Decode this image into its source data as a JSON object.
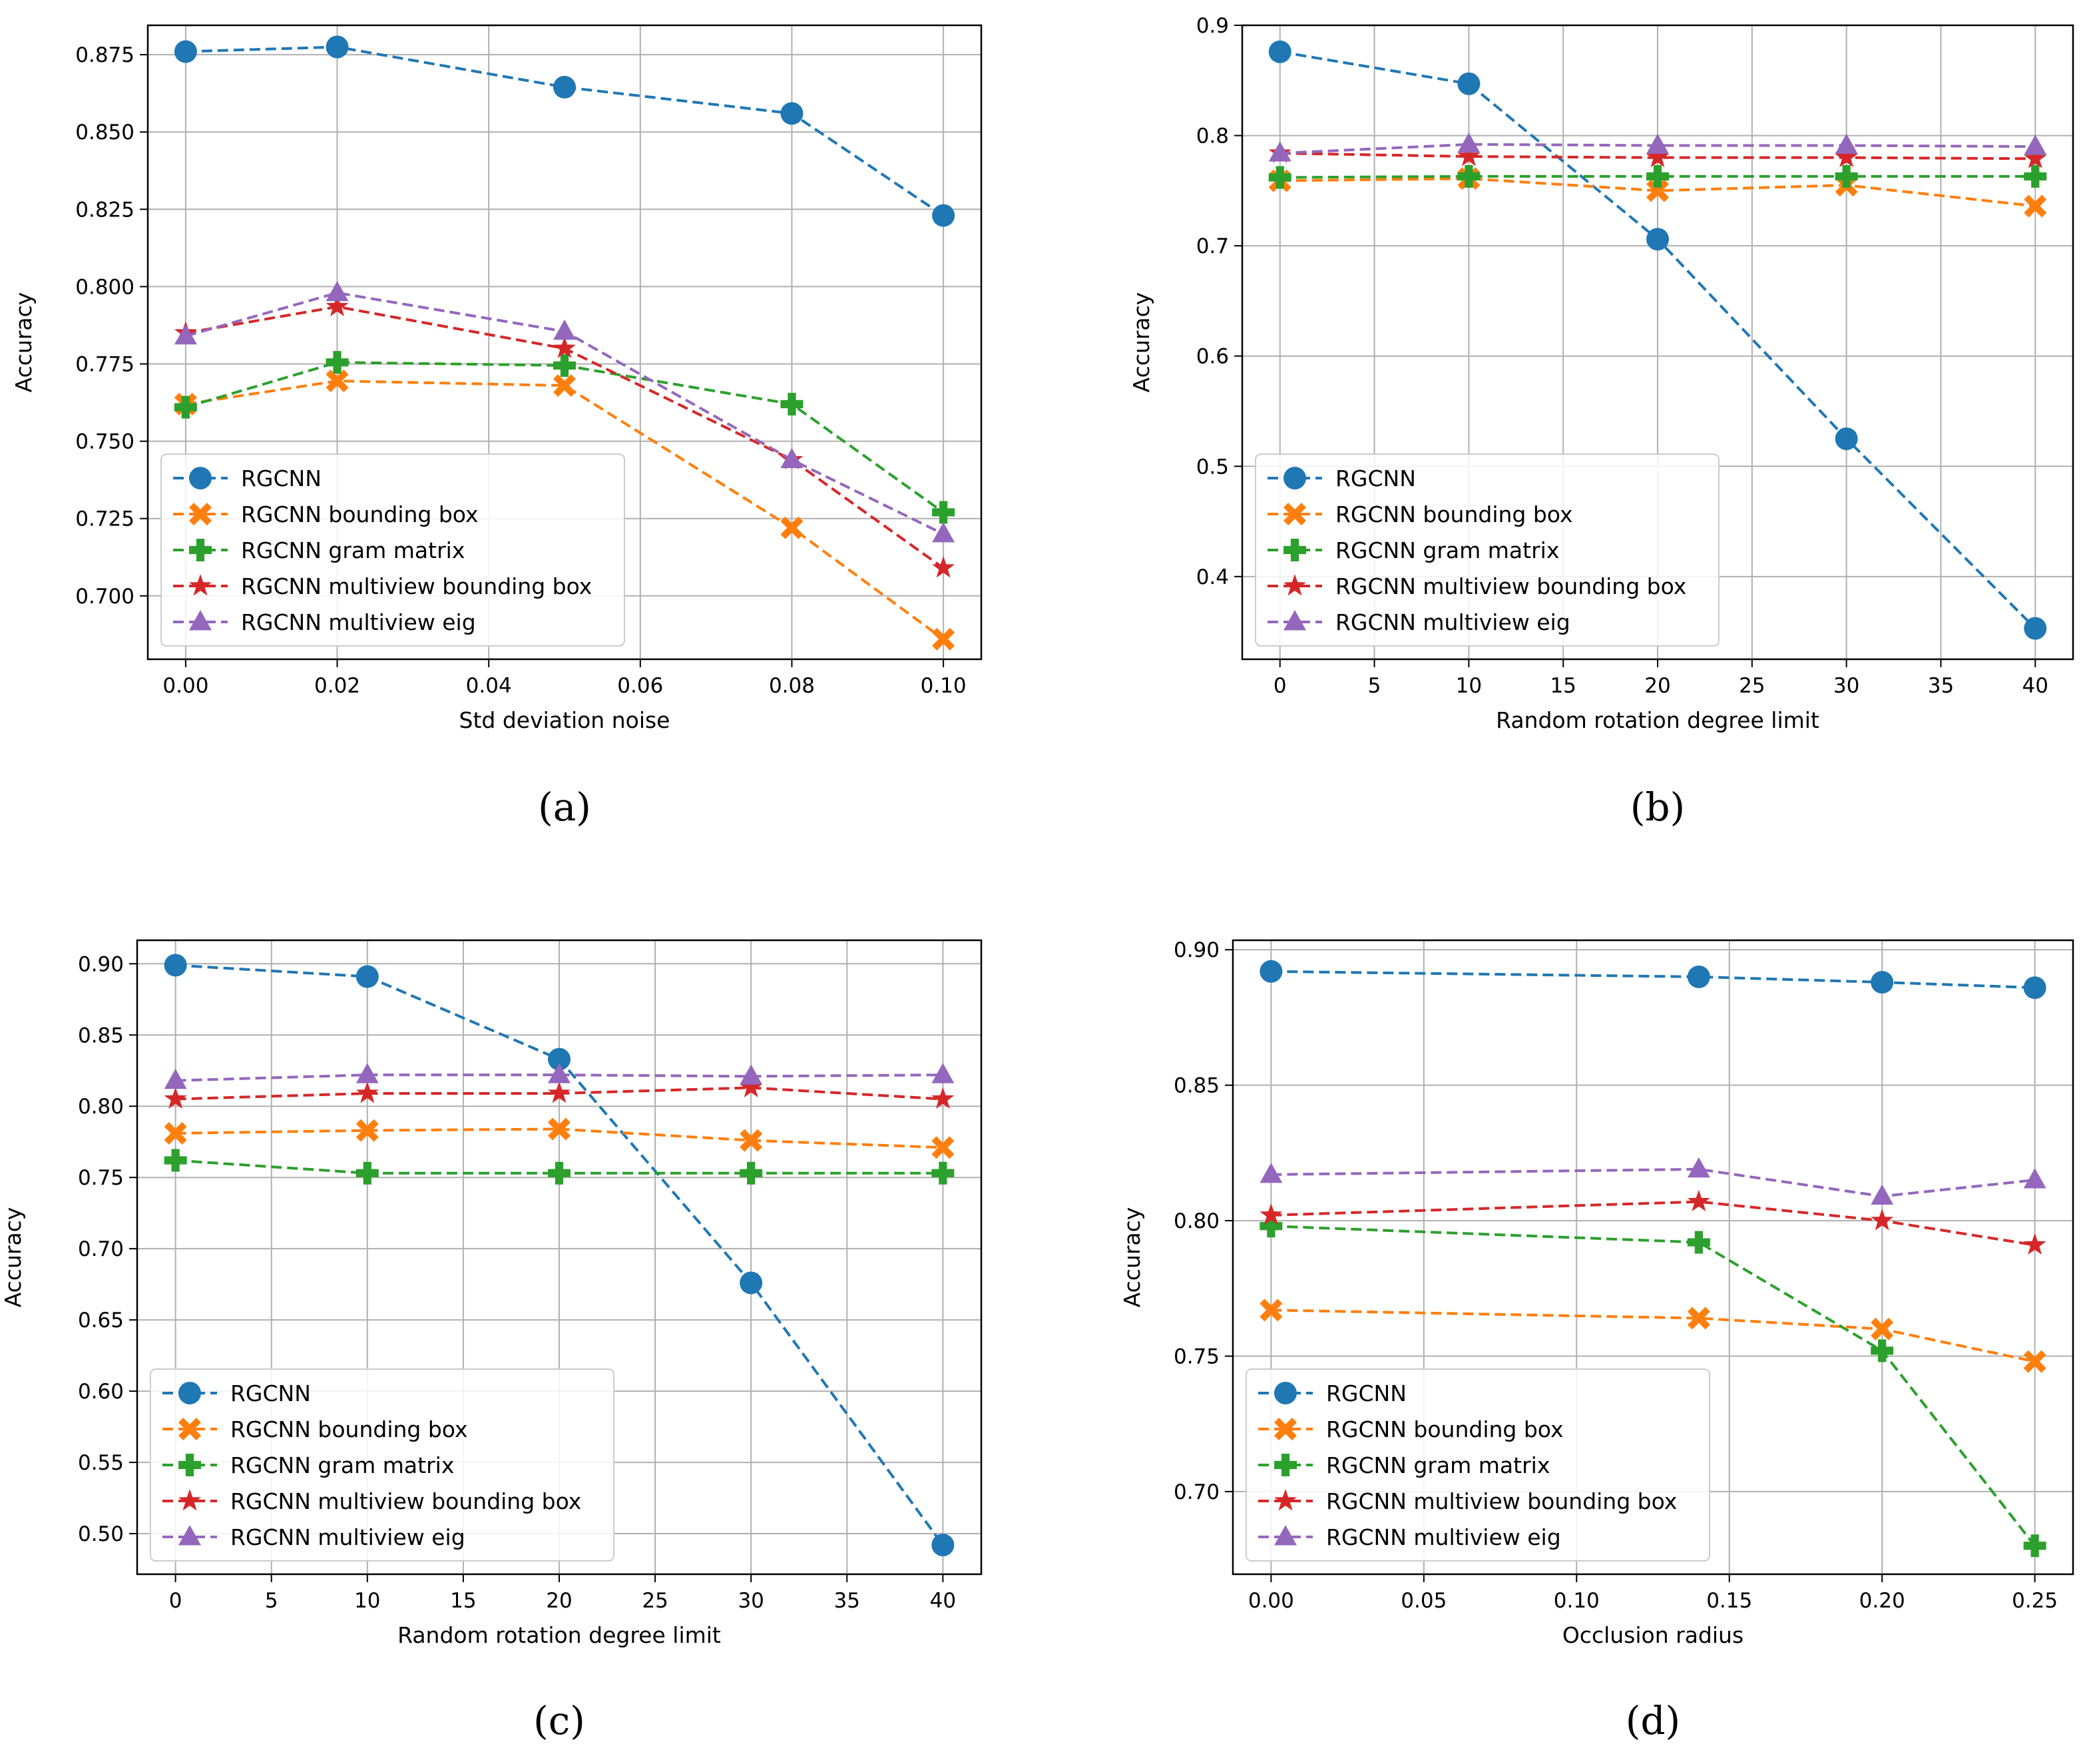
{
  "colors": {
    "RGCNN": "#1f77b4",
    "RGCNN bounding box": "#ff7f0e",
    "RGCNN gram matrix": "#2ca02c",
    "RGCNN multiview bounding box": "#d62728",
    "RGCNN multiview eig": "#9467bd",
    "grid": "#b0b0b0",
    "axis": "#000000"
  },
  "chart_data": [
    {
      "type": "line",
      "panel_label": "(a)",
      "xlabel": "Std deviation noise",
      "ylabel": "Accuracy",
      "xlim": [
        -0.005,
        0.105
      ],
      "ylim": [
        0.6795,
        0.8845
      ],
      "xticks": [
        0.0,
        0.02,
        0.04,
        0.06,
        0.08,
        0.1
      ],
      "xtick_labels": [
        "0.00",
        "0.02",
        "0.04",
        "0.06",
        "0.08",
        "0.10"
      ],
      "yticks": [
        0.7,
        0.725,
        0.75,
        0.775,
        0.8,
        0.825,
        0.85,
        0.875
      ],
      "ytick_labels": [
        "0.700",
        "0.725",
        "0.750",
        "0.775",
        "0.800",
        "0.825",
        "0.850",
        "0.875"
      ],
      "x": [
        0.0,
        0.02,
        0.05,
        0.08,
        0.1
      ],
      "legend_position": "lower-left",
      "series": [
        {
          "name": "RGCNN",
          "marker": "circle",
          "values": [
            0.876,
            0.8775,
            0.8645,
            0.856,
            0.823
          ]
        },
        {
          "name": "RGCNN bounding box",
          "marker": "x-filled",
          "values": [
            0.762,
            0.7695,
            0.768,
            0.722,
            0.686
          ]
        },
        {
          "name": "RGCNN gram matrix",
          "marker": "plus-filled",
          "values": [
            0.761,
            0.7755,
            0.7745,
            0.762,
            0.727
          ]
        },
        {
          "name": "RGCNN multiview bounding box",
          "marker": "star",
          "values": [
            0.785,
            0.7935,
            0.78,
            0.744,
            0.709
          ]
        },
        {
          "name": "RGCNN multiview eig",
          "marker": "triangle",
          "values": [
            0.784,
            0.798,
            0.7855,
            0.744,
            0.72
          ]
        }
      ]
    },
    {
      "type": "line",
      "panel_label": "(b)",
      "xlabel": "Random rotation degree limit",
      "ylabel": "Accuracy",
      "xlim": [
        -2,
        42
      ],
      "ylim": [
        0.325,
        0.9
      ],
      "xticks": [
        0,
        5,
        10,
        15,
        20,
        25,
        30,
        35,
        40
      ],
      "xtick_labels": [
        "0",
        "5",
        "10",
        "15",
        "20",
        "25",
        "30",
        "35",
        "40"
      ],
      "yticks": [
        0.4,
        0.5,
        0.6,
        0.7,
        0.8,
        0.9
      ],
      "ytick_labels": [
        "0.4",
        "0.5",
        "0.6",
        "0.7",
        "0.8",
        "0.9"
      ],
      "x": [
        0,
        10,
        20,
        30,
        40
      ],
      "legend_position": "lower-left",
      "series": [
        {
          "name": "RGCNN",
          "marker": "circle",
          "values": [
            0.876,
            0.847,
            0.706,
            0.525,
            0.353
          ]
        },
        {
          "name": "RGCNN bounding box",
          "marker": "x-filled",
          "values": [
            0.759,
            0.761,
            0.75,
            0.755,
            0.736
          ]
        },
        {
          "name": "RGCNN gram matrix",
          "marker": "plus-filled",
          "values": [
            0.762,
            0.763,
            0.763,
            0.763,
            0.763
          ]
        },
        {
          "name": "RGCNN multiview bounding box",
          "marker": "star",
          "values": [
            0.784,
            0.781,
            0.78,
            0.78,
            0.779
          ]
        },
        {
          "name": "RGCNN multiview eig",
          "marker": "triangle",
          "values": [
            0.784,
            0.792,
            0.791,
            0.791,
            0.79
          ]
        }
      ]
    },
    {
      "type": "line",
      "panel_label": "(c)",
      "xlabel": "Random rotation degree limit",
      "ylabel": "Accuracy",
      "xlim": [
        -2,
        42
      ],
      "ylim": [
        0.4715,
        0.9165
      ],
      "xticks": [
        0,
        5,
        10,
        15,
        20,
        25,
        30,
        35,
        40
      ],
      "xtick_labels": [
        "0",
        "5",
        "10",
        "15",
        "20",
        "25",
        "30",
        "35",
        "40"
      ],
      "yticks": [
        0.5,
        0.55,
        0.6,
        0.65,
        0.7,
        0.75,
        0.8,
        0.85,
        0.9
      ],
      "ytick_labels": [
        "0.50",
        "0.55",
        "0.60",
        "0.65",
        "0.70",
        "0.75",
        "0.80",
        "0.85",
        "0.90"
      ],
      "x": [
        0,
        10,
        20,
        30,
        40
      ],
      "legend_position": "lower-left",
      "series": [
        {
          "name": "RGCNN",
          "marker": "circle",
          "values": [
            0.899,
            0.891,
            0.833,
            0.676,
            0.492
          ]
        },
        {
          "name": "RGCNN bounding box",
          "marker": "x-filled",
          "values": [
            0.781,
            0.783,
            0.784,
            0.776,
            0.771
          ]
        },
        {
          "name": "RGCNN gram matrix",
          "marker": "plus-filled",
          "values": [
            0.762,
            0.753,
            0.753,
            0.753,
            0.753
          ]
        },
        {
          "name": "RGCNN multiview bounding box",
          "marker": "star",
          "values": [
            0.805,
            0.809,
            0.809,
            0.813,
            0.805
          ]
        },
        {
          "name": "RGCNN multiview eig",
          "marker": "triangle",
          "values": [
            0.818,
            0.822,
            0.822,
            0.821,
            0.822
          ]
        }
      ]
    },
    {
      "type": "line",
      "panel_label": "(d)",
      "xlabel": "Occlusion radius",
      "ylabel": "Accuracy",
      "xlim": [
        -0.0125,
        0.2625
      ],
      "ylim": [
        0.6695,
        0.9035
      ],
      "xticks": [
        0.0,
        0.05,
        0.1,
        0.15,
        0.2,
        0.25
      ],
      "xtick_labels": [
        "0.00",
        "0.05",
        "0.10",
        "0.15",
        "0.20",
        "0.25"
      ],
      "yticks": [
        0.7,
        0.75,
        0.8,
        0.85,
        0.9
      ],
      "ytick_labels": [
        "0.70",
        "0.75",
        "0.80",
        "0.85",
        "0.90"
      ],
      "x": [
        0.0,
        0.14,
        0.2,
        0.25
      ],
      "legend_position": "lower-left",
      "series": [
        {
          "name": "RGCNN",
          "marker": "circle",
          "values": [
            0.892,
            0.89,
            0.888,
            0.886
          ]
        },
        {
          "name": "RGCNN bounding box",
          "marker": "x-filled",
          "values": [
            0.767,
            0.764,
            0.76,
            0.748
          ]
        },
        {
          "name": "RGCNN gram matrix",
          "marker": "plus-filled",
          "values": [
            0.798,
            0.792,
            0.752,
            0.68
          ]
        },
        {
          "name": "RGCNN multiview bounding box",
          "marker": "star",
          "values": [
            0.802,
            0.807,
            0.8,
            0.791
          ]
        },
        {
          "name": "RGCNN multiview eig",
          "marker": "triangle",
          "values": [
            0.817,
            0.819,
            0.809,
            0.815
          ]
        }
      ]
    }
  ]
}
